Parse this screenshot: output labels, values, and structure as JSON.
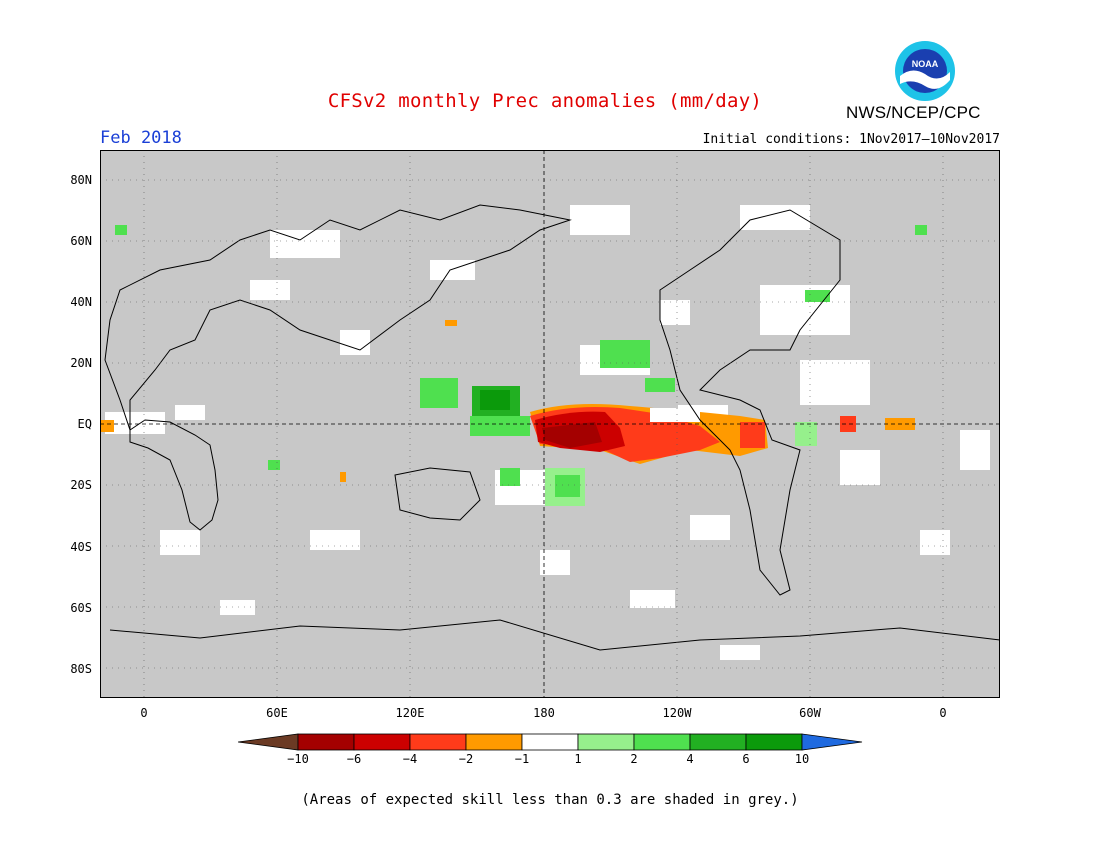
{
  "header": {
    "title": "CFSv2 monthly Prec anomalies (mm/day)",
    "agency": "NWS/NCEP/CPC",
    "month": "Feb 2018",
    "initial_conditions": "Initial conditions: 1Nov2017–10Nov2017",
    "logo_text": "NOAA"
  },
  "map": {
    "projection": "equirectangular",
    "background_color": "#c8c8c8",
    "grid": "dotted",
    "lat_labels": [
      "80N",
      "60N",
      "40N",
      "20N",
      "EQ",
      "20S",
      "40S",
      "60S",
      "80S"
    ],
    "lon_labels": [
      "0",
      "60E",
      "120E",
      "180",
      "120W",
      "60W",
      "0"
    ],
    "icon": "world-coastline-map"
  },
  "colorbar": {
    "colors": [
      "#6b3a24",
      "#a40000",
      "#cc0000",
      "#ff3b1a",
      "#ff9a00",
      "#ffffff",
      "#96f08c",
      "#4fe04f",
      "#22b022",
      "#0b9a0b",
      "#1f6ae0"
    ],
    "labels": [
      "−10",
      "−6",
      "−4",
      "−2",
      "−1",
      "1",
      "2",
      "4",
      "6",
      "10"
    ]
  },
  "footer": {
    "note": "(Areas of expected skill less than 0.3 are shaded in grey.)"
  }
}
